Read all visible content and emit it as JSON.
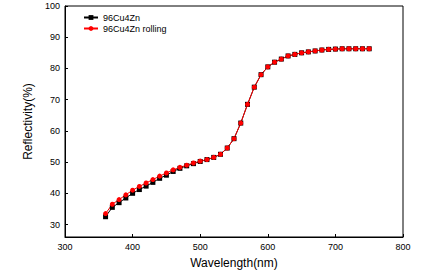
{
  "chart_data": {
    "type": "line",
    "x_label": "Wavelength(nm)",
    "y_label": "Reflectivity(%)",
    "x": [
      360,
      370,
      380,
      390,
      400,
      410,
      420,
      430,
      440,
      450,
      460,
      470,
      480,
      490,
      500,
      510,
      520,
      530,
      540,
      550,
      560,
      570,
      580,
      590,
      600,
      610,
      620,
      630,
      640,
      650,
      660,
      670,
      680,
      690,
      700,
      710,
      720,
      730,
      740,
      750
    ],
    "series": [
      {
        "name": "96Cu4Zn",
        "color": "#000000",
        "marker": "square",
        "values": [
          32.5,
          35.5,
          37,
          38.5,
          40,
          41.2,
          42.3,
          43.5,
          44.8,
          45.8,
          47,
          48,
          48.8,
          49.5,
          50.2,
          50.8,
          51.5,
          52.5,
          54.5,
          57.5,
          62.5,
          68.5,
          74,
          78,
          80.5,
          82,
          83,
          84,
          84.5,
          85,
          85.3,
          85.6,
          85.9,
          86.1,
          86.2,
          86.3,
          86.3,
          86.3,
          86.3,
          86.3
        ]
      },
      {
        "name": "96Cu4Zn rolling",
        "color": "#ff0000",
        "marker": "circle",
        "values": [
          33.5,
          36.5,
          38,
          39.5,
          41,
          42.2,
          43.3,
          44.4,
          45.5,
          46.5,
          47.5,
          48.3,
          49,
          49.7,
          50.3,
          50.8,
          51.5,
          52.5,
          54.5,
          57.5,
          62.5,
          68.5,
          74,
          78,
          80.5,
          82,
          83,
          84,
          84.5,
          85,
          85.3,
          85.6,
          85.9,
          86.1,
          86.2,
          86.3,
          86.3,
          86.3,
          86.3,
          86.3
        ]
      }
    ],
    "xlim": [
      300,
      800
    ],
    "xticks": [
      300,
      400,
      500,
      600,
      700,
      800
    ],
    "ylim": [
      26,
      100
    ],
    "yticks": [
      30,
      40,
      50,
      60,
      70,
      80,
      90,
      100
    ],
    "grid": false,
    "legend": "upper left"
  }
}
